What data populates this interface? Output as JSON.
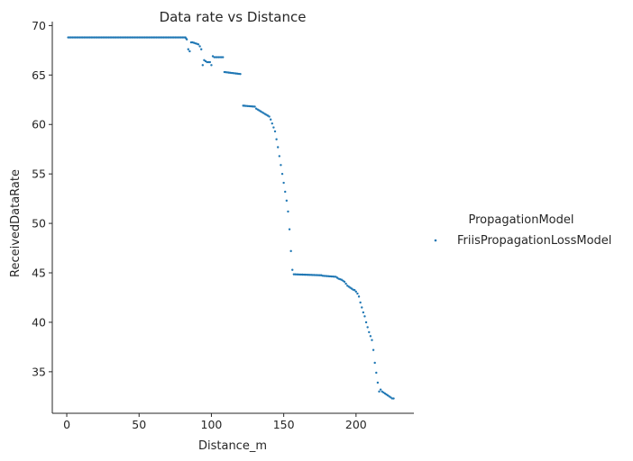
{
  "chart_data": {
    "type": "scatter",
    "title": "Data rate vs Distance",
    "xlabel": "Distance_m",
    "ylabel": "ReceivedDataRate",
    "xlim": [
      -10,
      240
    ],
    "ylim": [
      30.8,
      70.4
    ],
    "xticks": [
      0,
      50,
      100,
      150,
      200
    ],
    "yticks": [
      35,
      40,
      45,
      50,
      55,
      60,
      65,
      70
    ],
    "legend": {
      "title": "PropagationModel",
      "position": "right",
      "entries": [
        "FriisPropagationLossModel"
      ]
    },
    "marker_color": "#1f77b4",
    "series": [
      {
        "name": "FriisPropagationLossModel",
        "segments": [
          {
            "x_from": 1,
            "x_to": 82,
            "step": 1,
            "y": 68.8
          },
          {
            "x_from": 87,
            "x_to": 91,
            "step": 1,
            "y_from": 68.3,
            "y_to": 68.1
          },
          {
            "x_from": 97,
            "x_to": 99,
            "step": 1,
            "y": 66.3
          },
          {
            "x_from": 102,
            "x_to": 108,
            "step": 1,
            "y": 66.8
          },
          {
            "x_from": 109,
            "x_to": 120,
            "step": 1,
            "y_from": 65.3,
            "y_to": 65.1
          },
          {
            "x_from": 122,
            "x_to": 130,
            "step": 1,
            "y_from": 61.9,
            "y_to": 61.8
          },
          {
            "x_from": 131,
            "x_to": 140,
            "step": 1,
            "y_from": 61.6,
            "y_to": 60.8
          },
          {
            "x_from": 157,
            "x_to": 176,
            "step": 1,
            "y_from": 44.85,
            "y_to": 44.75
          },
          {
            "x_from": 177,
            "x_to": 186,
            "step": 1,
            "y_from": 44.7,
            "y_to": 44.6
          }
        ],
        "points": [
          [
            82.5,
            68.7
          ],
          [
            83,
            68.6
          ],
          [
            84,
            67.6
          ],
          [
            85,
            67.4
          ],
          [
            86,
            68.3
          ],
          [
            92,
            67.9
          ],
          [
            93,
            67.6
          ],
          [
            94,
            66.0
          ],
          [
            95,
            66.5
          ],
          [
            96,
            66.4
          ],
          [
            100,
            66.0
          ],
          [
            101,
            66.9
          ],
          [
            141,
            60.5
          ],
          [
            142,
            60.1
          ],
          [
            143,
            59.7
          ],
          [
            144,
            59.3
          ],
          [
            145,
            58.5
          ],
          [
            146,
            57.7
          ],
          [
            147,
            56.8
          ],
          [
            148,
            55.9
          ],
          [
            149,
            55.0
          ],
          [
            150,
            54.1
          ],
          [
            151,
            53.2
          ],
          [
            152,
            52.3
          ],
          [
            153,
            51.2
          ],
          [
            154,
            49.4
          ],
          [
            155,
            47.2
          ],
          [
            156,
            45.3
          ],
          [
            187,
            44.5
          ],
          [
            188,
            44.4
          ],
          [
            189,
            44.35
          ],
          [
            190,
            44.3
          ],
          [
            191,
            44.2
          ],
          [
            192,
            44.1
          ],
          [
            193,
            43.9
          ],
          [
            194,
            43.7
          ],
          [
            195,
            43.6
          ],
          [
            196,
            43.5
          ],
          [
            197,
            43.4
          ],
          [
            198,
            43.3
          ],
          [
            199,
            43.25
          ],
          [
            200,
            43.1
          ],
          [
            201,
            42.9
          ],
          [
            202,
            42.6
          ],
          [
            203,
            42.0
          ],
          [
            204,
            41.5
          ],
          [
            205,
            41.0
          ],
          [
            206,
            40.6
          ],
          [
            207,
            40.0
          ],
          [
            208,
            39.5
          ],
          [
            209,
            39.0
          ],
          [
            210,
            38.6
          ],
          [
            211,
            38.2
          ],
          [
            212,
            37.2
          ],
          [
            213,
            35.9
          ],
          [
            214,
            34.9
          ],
          [
            215,
            33.9
          ],
          [
            216,
            33.0
          ],
          [
            217,
            33.2
          ],
          [
            218,
            33.0
          ],
          [
            219,
            32.9
          ],
          [
            220,
            32.8
          ],
          [
            221,
            32.7
          ],
          [
            222,
            32.6
          ],
          [
            223,
            32.5
          ],
          [
            224,
            32.4
          ],
          [
            225,
            32.3
          ],
          [
            226,
            32.3
          ]
        ]
      }
    ]
  }
}
